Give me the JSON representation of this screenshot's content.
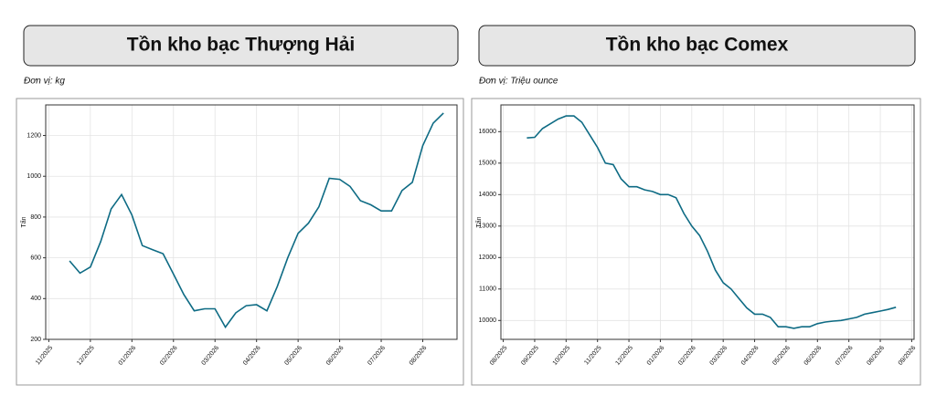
{
  "chart_data": [
    {
      "type": "line",
      "title": "Tồn kho bạc Thượng Hải",
      "subtitle": "Đơn vị: kg",
      "y_label": "Tấn",
      "color": "#0e6b84",
      "grid": true,
      "categories": [
        "11/2025",
        null,
        null,
        null,
        "12/2025",
        null,
        null,
        null,
        "01/2026",
        null,
        null,
        null,
        "02/2026",
        null,
        null,
        null,
        "03/2026",
        null,
        null,
        null,
        "04/2026",
        null,
        null,
        null,
        "05/2026",
        null,
        null,
        null,
        "06/2026",
        null,
        null,
        null,
        "07/2026",
        null,
        null,
        null,
        "08/2026",
        null,
        null,
        null
      ],
      "values": [
        null,
        null,
        585,
        525,
        555,
        680,
        840,
        910,
        810,
        660,
        640,
        620,
        520,
        420,
        340,
        350,
        350,
        260,
        330,
        365,
        370,
        340,
        460,
        600,
        720,
        770,
        850,
        990,
        985,
        950,
        880,
        860,
        830,
        830,
        930,
        970,
        1150,
        1260,
        1310,
        null
      ],
      "ylim": [
        200,
        1350
      ],
      "yticks": [
        200,
        400,
        600,
        800,
        1000,
        1200
      ]
    },
    {
      "type": "line",
      "title": "Tồn kho bạc Comex",
      "subtitle": "Đơn vị: Triệu ounce",
      "y_label": "Tấn",
      "color": "#0e6b84",
      "grid": true,
      "categories": [
        "08/2025",
        null,
        null,
        null,
        "09/2025",
        null,
        null,
        null,
        "10/2025",
        null,
        null,
        null,
        "11/2025",
        null,
        null,
        null,
        "12/2025",
        null,
        null,
        null,
        "01/2026",
        null,
        null,
        null,
        "02/2026",
        null,
        null,
        null,
        "03/2026",
        null,
        null,
        null,
        "04/2026",
        null,
        null,
        null,
        "05/2026",
        null,
        null,
        null,
        "06/2026",
        null,
        null,
        null,
        "07/2026",
        null,
        null,
        null,
        "08/2026",
        null,
        null,
        null,
        "09/2026"
      ],
      "values": [
        null,
        null,
        null,
        15800,
        15820,
        16100,
        16250,
        16400,
        16500,
        16500,
        16300,
        15900,
        15500,
        15000,
        14950,
        14500,
        14250,
        14250,
        14150,
        14100,
        14000,
        14000,
        13900,
        13400,
        13000,
        12700,
        12200,
        11600,
        11200,
        11000,
        10700,
        10400,
        10200,
        10200,
        10100,
        9800,
        9800,
        9750,
        9800,
        9800,
        9900,
        9950,
        9980,
        10000,
        10050,
        10100,
        10200,
        10250,
        10300,
        10350,
        10420,
        null,
        null
      ],
      "ylim": [
        9400,
        16850
      ],
      "yticks": [
        10000,
        11000,
        12000,
        13000,
        14000,
        15000,
        16000
      ]
    }
  ]
}
